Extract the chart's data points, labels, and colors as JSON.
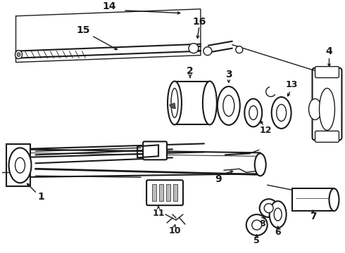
{
  "bg_color": "#ffffff",
  "line_color": "#1a1a1a",
  "fig_w": 4.9,
  "fig_h": 3.6,
  "dpi": 100
}
